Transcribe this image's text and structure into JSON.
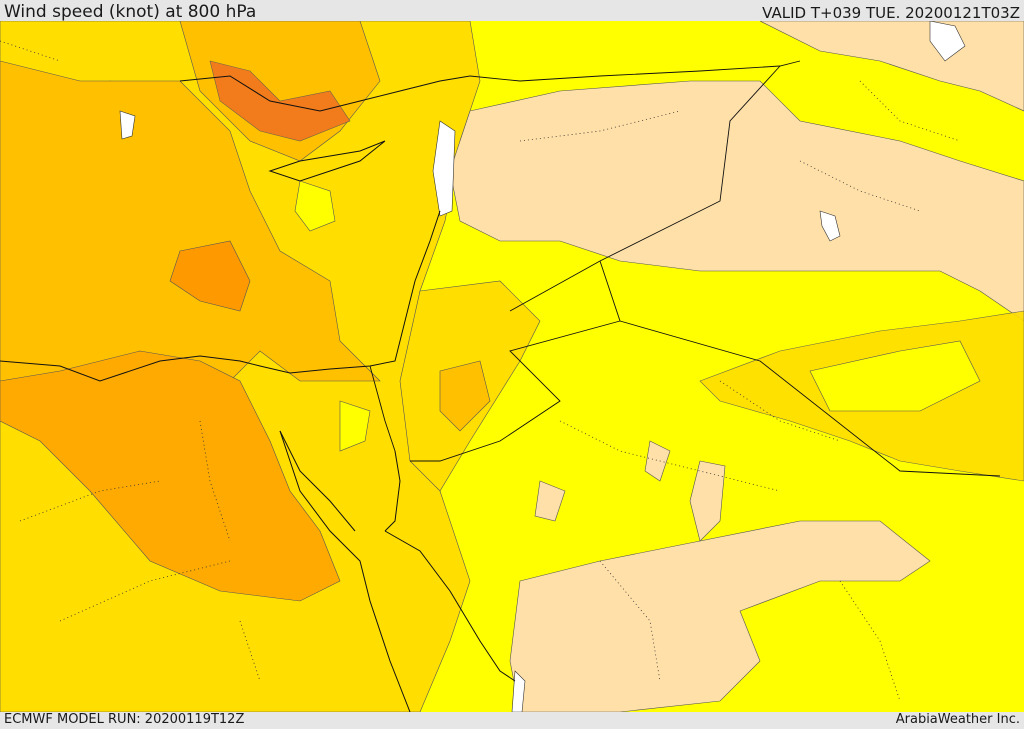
{
  "header": {
    "title": "Wind speed (knot) at 800 hPa",
    "valid_time": "VALID T+039 TUE. 20200121T03Z"
  },
  "footer": {
    "model_run": "ECMWF MODEL RUN: 20200119T12Z",
    "credit": "ArabiaWeather Inc."
  },
  "legend_colors": {
    "band_1": "#ffe0a8",
    "band_2": "#ffff00",
    "band_3": "#ffde00",
    "band_4": "#ffc000",
    "band_5": "#ffaa00",
    "band_6": "#ff9900",
    "band_7": "#f07020",
    "no_data": "#ffffff"
  }
}
